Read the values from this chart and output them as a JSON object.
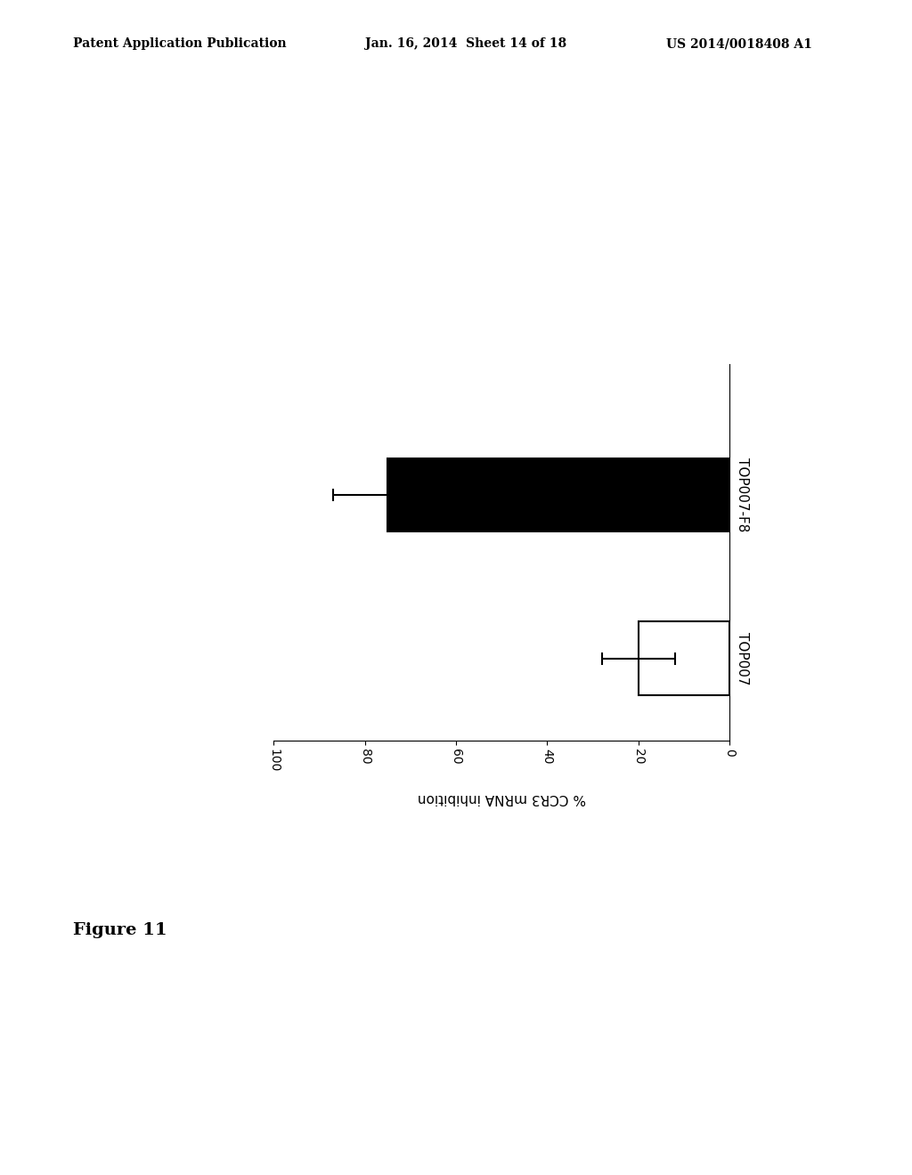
{
  "categories": [
    "TOP007-F8",
    "TOP007"
  ],
  "values": [
    75,
    20
  ],
  "errors": [
    12,
    8
  ],
  "bar_colors": [
    "black",
    "white"
  ],
  "bar_edgecolors": [
    "black",
    "black"
  ],
  "xlim": [
    0,
    100
  ],
  "xticks": [
    0,
    20,
    40,
    60,
    80,
    100
  ],
  "xlabel": "% CCR3 mRNA inhibition",
  "figure_label": "Figure 11",
  "header_left": "Patent Application Publication",
  "header_mid": "Jan. 16, 2014  Sheet 14 of 18",
  "header_right": "US 2014/0018408 A1",
  "background_color": "#ffffff"
}
